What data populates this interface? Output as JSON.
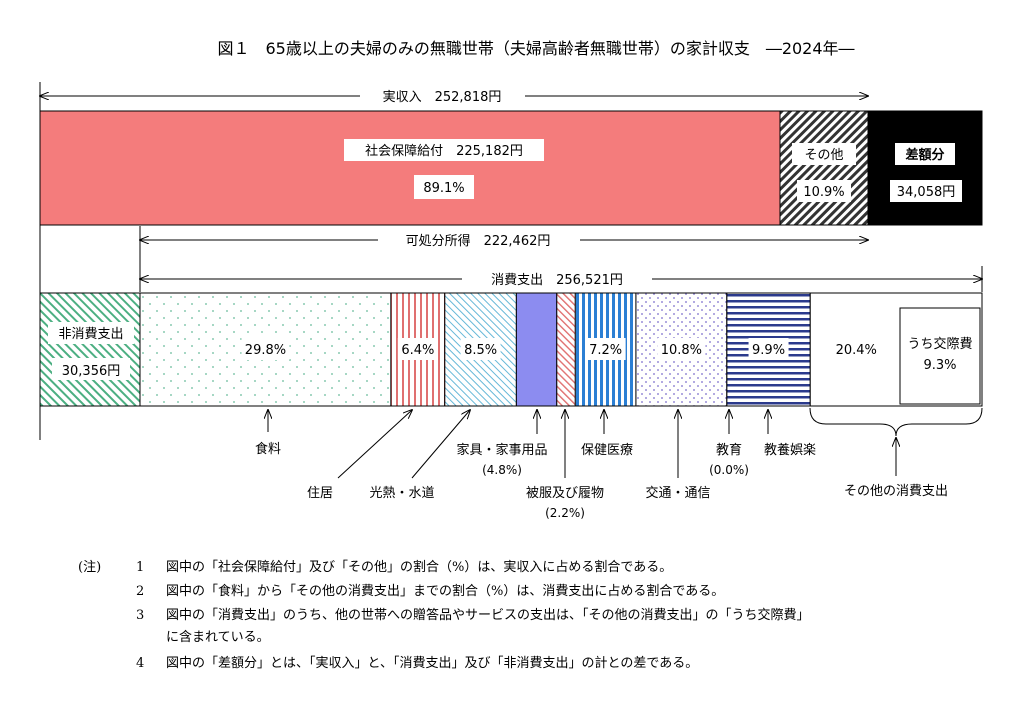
{
  "chart_data": {
    "type": "bar",
    "title": "図１　65歳以上の夫婦のみの無職世帯（夫婦高齢者無職世帯）の家計収支　―2024年―",
    "income": {
      "label": "実収入　252,818円",
      "segments": [
        {
          "key": "social",
          "label": "社会保障給付　225,182円",
          "pct_label": "89.1%",
          "value": 89.1,
          "color": "#f47c7c"
        },
        {
          "key": "other",
          "label": "その他",
          "pct_label": "10.9%",
          "value": 10.9,
          "color": "#555555"
        }
      ],
      "deficit": {
        "label": "差額分",
        "amount_label": "34,058円",
        "color": "#000000"
      }
    },
    "disposable_label": "可処分所得　222,462円",
    "consumption_label": "消費支出　256,521円",
    "non_consumption": {
      "label": "非消費支出",
      "amount_label": "30,356円",
      "color": "#4caf82"
    },
    "expenses": [
      {
        "key": "food",
        "pct_label": "29.8%",
        "value": 29.8,
        "name": "食料",
        "color": "#66bb99"
      },
      {
        "key": "housing",
        "pct_label": "6.4%",
        "value": 6.4,
        "name": "住居",
        "color": "#e07070"
      },
      {
        "key": "utilities",
        "pct_label": "8.5%",
        "value": 8.5,
        "name": "光熱・水道",
        "color": "#66b8d8"
      },
      {
        "key": "furniture",
        "pct_label": "",
        "value": 4.8,
        "name": "家具・家事用品",
        "sub": "(4.8%)",
        "color": "#8c8cf0"
      },
      {
        "key": "clothing",
        "pct_label": "",
        "value": 2.2,
        "name": "被服及び履物",
        "sub": "(2.2%)",
        "color": "#e07070"
      },
      {
        "key": "medical",
        "pct_label": "7.2%",
        "value": 7.2,
        "name": "保健医療",
        "color": "#2b7fd4"
      },
      {
        "key": "transport",
        "pct_label": "10.8%",
        "value": 10.8,
        "name": "交通・通信",
        "color": "#9a8fd8"
      },
      {
        "key": "education",
        "pct_label": "",
        "value": 0.0,
        "name": "教育",
        "sub": "(0.0%)",
        "color": "#2b3a8c"
      },
      {
        "key": "recreation",
        "pct_label": "9.9%",
        "value": 9.9,
        "name": "教養娯楽",
        "color": "#2b3a8c"
      },
      {
        "key": "other_exp",
        "pct_label": "20.4%",
        "value": 20.4,
        "name": "その他の消費支出",
        "color": "#ffffff",
        "inner_label_1": "うち交際費",
        "inner_label_2": "9.3%"
      }
    ]
  },
  "notes": {
    "label": "(注)",
    "items": [
      {
        "num": "1",
        "text": "図中の「社会保障給付」及び「その他」の割合（%）は、実収入に占める割合である。"
      },
      {
        "num": "2",
        "text": "図中の「食料」から「その他の消費支出」までの割合（%）は、消費支出に占める割合である。"
      },
      {
        "num": "3",
        "text": "図中の「消費支出」のうち、他の世帯への贈答品やサービスの支出は、「その他の消費支出」の「うち交際費」"
      },
      {
        "num": "4",
        "text": "図中の「差額分」とは、「実収入」と、「消費支出」及び「非消費支出」の計との差である。"
      }
    ],
    "item3_cont": "に含まれている。"
  }
}
